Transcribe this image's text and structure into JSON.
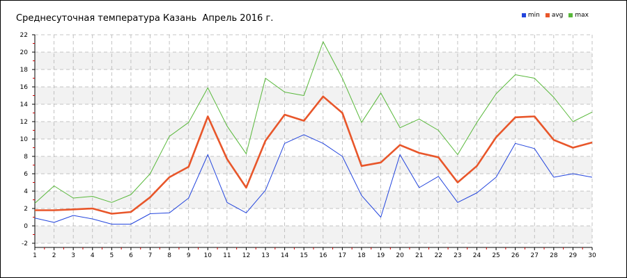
{
  "chart_data": {
    "type": "line",
    "title": "Среднесуточная температура Казань  Апрель 2016 г.",
    "xlabel": "",
    "ylabel": "",
    "x": [
      1,
      2,
      3,
      4,
      5,
      6,
      7,
      8,
      9,
      10,
      11,
      12,
      13,
      14,
      15,
      16,
      17,
      18,
      19,
      20,
      21,
      22,
      23,
      24,
      25,
      26,
      27,
      28,
      29,
      30
    ],
    "xlim": [
      1,
      30
    ],
    "ylim": [
      -2,
      22
    ],
    "yticks": [
      -2,
      0,
      2,
      4,
      6,
      8,
      10,
      12,
      14,
      16,
      18,
      20,
      22
    ],
    "grid": true,
    "legend_position": "top-right",
    "series": [
      {
        "name": "min",
        "color": "#2244dd",
        "stroke": 1,
        "values": [
          0.9,
          0.4,
          1.2,
          0.8,
          0.2,
          0.2,
          1.4,
          1.5,
          3.2,
          8.2,
          2.7,
          1.5,
          4.1,
          9.5,
          10.5,
          9.5,
          8.0,
          3.5,
          1.0,
          8.2,
          4.4,
          5.7,
          2.7,
          3.8,
          5.6,
          9.5,
          8.9,
          5.6,
          6.0,
          5.6
        ]
      },
      {
        "name": "avg",
        "color": "#e8562a",
        "stroke": 2.6,
        "values": [
          1.8,
          1.8,
          1.9,
          2.0,
          1.4,
          1.6,
          3.3,
          5.6,
          6.8,
          12.6,
          7.7,
          4.4,
          9.8,
          12.8,
          12.1,
          14.9,
          13.0,
          6.9,
          7.3,
          9.3,
          8.4,
          7.9,
          5.0,
          6.9,
          10.2,
          12.5,
          12.6,
          9.9,
          9.0,
          9.6
        ]
      },
      {
        "name": "max",
        "color": "#58b83a",
        "stroke": 1,
        "values": [
          2.6,
          4.6,
          3.2,
          3.4,
          2.7,
          3.6,
          6.0,
          10.3,
          11.9,
          15.9,
          11.5,
          8.3,
          17.0,
          15.4,
          15.0,
          21.2,
          17.0,
          11.9,
          15.3,
          11.3,
          12.3,
          11.0,
          8.2,
          11.9,
          15.2,
          17.4,
          17.0,
          14.8,
          12.0,
          13.1
        ]
      }
    ]
  },
  "colors": {
    "band": "#f2f2f2",
    "grid": "#b4b4b4",
    "axis": "#000000",
    "tick_red": "#cc0000"
  }
}
